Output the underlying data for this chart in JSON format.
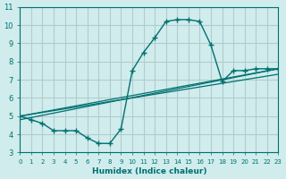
{
  "xlabel": "Humidex (Indice chaleur)",
  "ylabel": "",
  "bg_color": "#d0ecec",
  "grid_color": "#b0cccc",
  "line_color": "#007070",
  "xlim": [
    0,
    23
  ],
  "ylim": [
    3,
    11
  ],
  "xticks": [
    0,
    1,
    2,
    3,
    4,
    5,
    6,
    7,
    8,
    9,
    10,
    11,
    12,
    13,
    14,
    15,
    16,
    17,
    18,
    19,
    20,
    21,
    22,
    23
  ],
  "yticks": [
    3,
    4,
    5,
    6,
    7,
    8,
    9,
    10,
    11
  ],
  "series1_x": [
    0,
    1,
    2,
    3,
    4,
    5,
    6,
    7,
    8,
    9,
    10,
    11,
    12,
    13,
    14,
    15,
    16,
    17,
    18,
    19,
    20,
    21,
    22,
    23
  ],
  "series1_y": [
    5.0,
    4.8,
    4.6,
    4.2,
    4.2,
    4.2,
    3.8,
    3.5,
    3.5,
    4.3,
    7.5,
    8.5,
    9.3,
    10.2,
    10.3,
    10.3,
    10.2,
    8.9,
    6.9,
    7.5,
    7.5,
    7.6,
    7.6,
    7.6
  ],
  "series2_x": [
    0,
    23
  ],
  "series2_y": [
    5.0,
    7.6
  ],
  "series3_x": [
    0,
    23
  ],
  "series3_y": [
    5.0,
    7.3
  ],
  "series4_x": [
    0,
    23
  ],
  "series4_y": [
    4.8,
    7.6
  ]
}
